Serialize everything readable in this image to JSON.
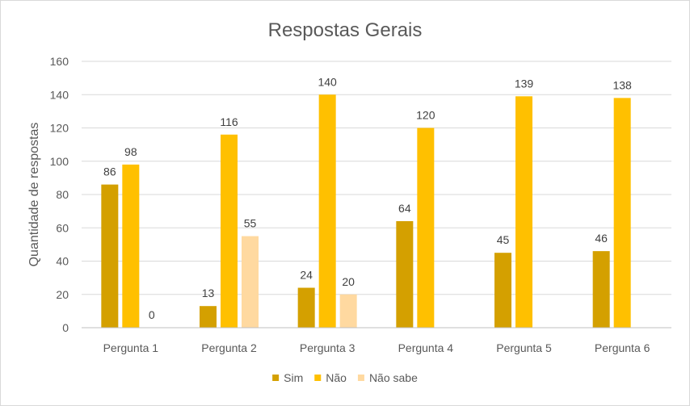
{
  "chart_data": {
    "type": "bar",
    "title": "Respostas Gerais",
    "xlabel": "",
    "ylabel": "Quantidade de respostas",
    "ylim": [
      0,
      160
    ],
    "yticks": [
      0,
      20,
      40,
      60,
      80,
      100,
      120,
      140,
      160
    ],
    "grid": true,
    "legend_position": "bottom",
    "categories": [
      "Pergunta 1",
      "Pergunta 2",
      "Pergunta 3",
      "Pergunta 4",
      "Pergunta 5",
      "Pergunta 6"
    ],
    "series": [
      {
        "name": "Sim",
        "color": "#d4a000",
        "values": [
          86,
          13,
          24,
          64,
          45,
          46
        ],
        "labels": [
          "86",
          "13",
          "24",
          "64",
          "45",
          "46"
        ]
      },
      {
        "name": "Não",
        "color": "#ffc000",
        "values": [
          98,
          116,
          140,
          120,
          139,
          138
        ],
        "labels": [
          "98",
          "116",
          "140",
          "120",
          "139",
          "138"
        ]
      },
      {
        "name": "Não sabe",
        "color": "#ffd9a0",
        "values": [
          0,
          55,
          20,
          0,
          0,
          0
        ],
        "labels": [
          "0",
          "55",
          "20",
          "",
          "",
          ""
        ]
      }
    ]
  }
}
